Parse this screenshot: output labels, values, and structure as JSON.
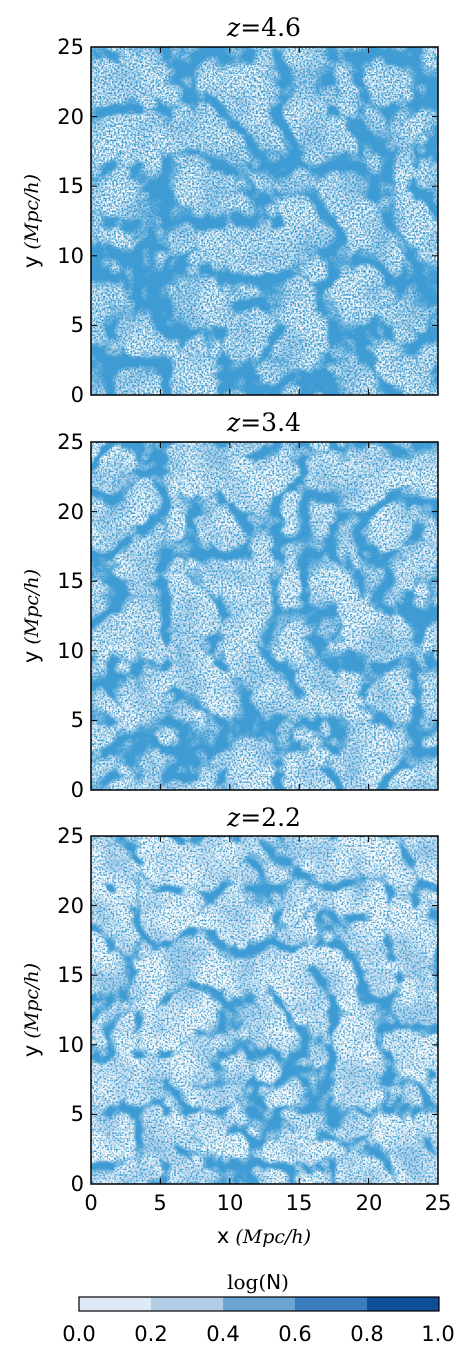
{
  "chart_data": [
    {
      "type": "heatmap",
      "title_var": "z",
      "title_eq": "=",
      "title_value": "4.6",
      "ylabel": "y",
      "ylabel_unit": "(Mpc/h)",
      "xlim": [
        0,
        25
      ],
      "ylim": [
        0,
        25
      ],
      "xticks": [],
      "yticks": [
        "0",
        "5",
        "10",
        "15",
        "20",
        "25"
      ]
    },
    {
      "type": "heatmap",
      "title_var": "z",
      "title_eq": "=",
      "title_value": "3.4",
      "ylabel": "y",
      "ylabel_unit": "(Mpc/h)",
      "xlim": [
        0,
        25
      ],
      "ylim": [
        0,
        25
      ],
      "xticks": [],
      "yticks": [
        "0",
        "5",
        "10",
        "15",
        "20",
        "25"
      ]
    },
    {
      "type": "heatmap",
      "title_var": "z",
      "title_eq": "=",
      "title_value": "2.2",
      "ylabel": "y",
      "ylabel_unit": "(Mpc/h)",
      "xlabel": "x",
      "xlabel_unit": "(Mpc/h)",
      "xlim": [
        0,
        25
      ],
      "ylim": [
        0,
        25
      ],
      "xticks": [
        "0",
        "5",
        "10",
        "15",
        "20",
        "25"
      ],
      "yticks": [
        "0",
        "5",
        "10",
        "15",
        "20",
        "25"
      ]
    }
  ],
  "colorbar": {
    "label_func": "log",
    "label_arg": "N",
    "ticks": [
      "0.0",
      "0.2",
      "0.4",
      "0.6",
      "0.8",
      "1.0"
    ],
    "colors": [
      "#deebf7",
      "#b1cde6",
      "#6ba5d2",
      "#3a7dbd",
      "#0e4f95"
    ]
  },
  "colors": {
    "map_base": "#ffffff",
    "map_low": "#9ec6e6",
    "map_mid": "#4a8cc8",
    "map_high": "#0b4f99"
  }
}
